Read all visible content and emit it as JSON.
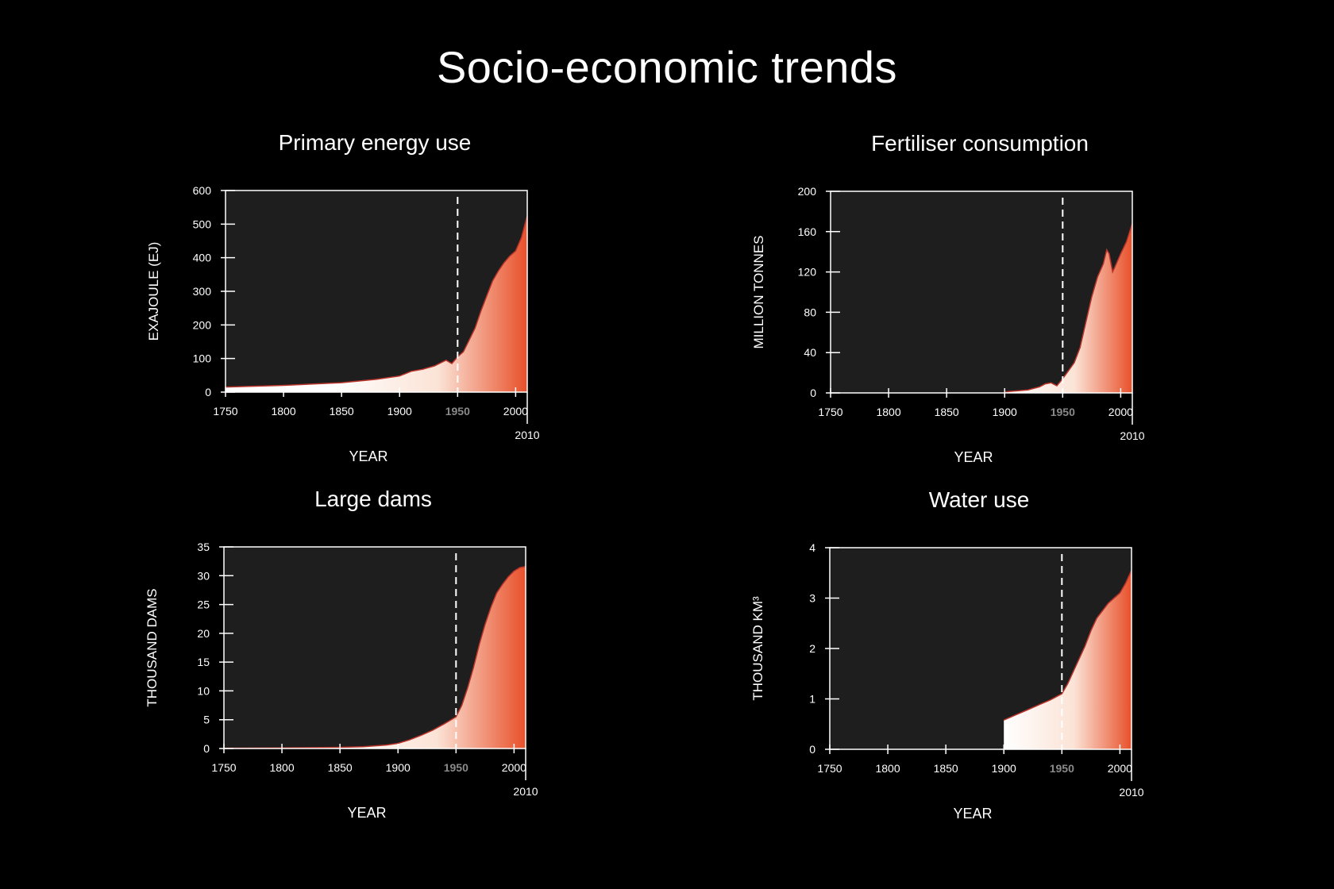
{
  "title": "Socio-economic trends",
  "colors": {
    "background": "#000000",
    "plot_bg": "#1e1e1e",
    "frame": "#ffffff",
    "gradient_start": "#ffffff",
    "gradient_end": "#e8502a",
    "edge": "#b8342a",
    "highlight_tick": "#8a8a8a"
  },
  "chart_data": [
    {
      "id": "energy",
      "type": "area",
      "title": "Primary energy use",
      "xlabel": "YEAR",
      "ylabel": "EXAJOULE (EJ)",
      "xlim": [
        1750,
        2010
      ],
      "ylim": [
        0,
        600
      ],
      "xticks": [
        1750,
        1800,
        1850,
        1900,
        1950,
        2000
      ],
      "xticks_highlight": [
        1950
      ],
      "xend_label": "2010",
      "yticks": [
        0,
        100,
        200,
        300,
        400,
        500,
        600
      ],
      "reference_line_x": 1950,
      "grid": false,
      "x": [
        1750,
        1800,
        1850,
        1880,
        1900,
        1910,
        1920,
        1930,
        1940,
        1945,
        1950,
        1955,
        1960,
        1965,
        1970,
        1975,
        1980,
        1985,
        1990,
        1995,
        2000,
        2005,
        2010
      ],
      "y": [
        15,
        20,
        28,
        38,
        48,
        62,
        68,
        78,
        95,
        85,
        105,
        120,
        155,
        190,
        240,
        285,
        330,
        360,
        385,
        405,
        420,
        460,
        525
      ]
    },
    {
      "id": "fertiliser",
      "type": "area",
      "title": "Fertiliser consumption",
      "xlabel": "YEAR",
      "ylabel": "MILLION TONNES",
      "xlim": [
        1750,
        2010
      ],
      "ylim": [
        0,
        200
      ],
      "xticks": [
        1750,
        1800,
        1850,
        1900,
        1950,
        2000
      ],
      "xticks_highlight": [
        1950
      ],
      "xend_label": "2010",
      "yticks": [
        0,
        40,
        80,
        120,
        160,
        200
      ],
      "reference_line_x": 1950,
      "grid": false,
      "x": [
        1900,
        1910,
        1920,
        1930,
        1935,
        1940,
        1945,
        1950,
        1955,
        1960,
        1965,
        1970,
        1975,
        1980,
        1985,
        1988,
        1990,
        1993,
        1995,
        2000,
        2005,
        2010
      ],
      "y": [
        1,
        2,
        3,
        6,
        9,
        10,
        7,
        14,
        22,
        30,
        45,
        70,
        95,
        115,
        128,
        142,
        138,
        120,
        125,
        138,
        150,
        168
      ]
    },
    {
      "id": "dams",
      "type": "area",
      "title": "Large dams",
      "xlabel": "YEAR",
      "ylabel": "THOUSAND DAMS",
      "xlim": [
        1750,
        2010
      ],
      "ylim": [
        0,
        35
      ],
      "xticks": [
        1750,
        1800,
        1850,
        1900,
        1950,
        2000
      ],
      "xticks_highlight": [
        1950
      ],
      "xend_label": "2010",
      "yticks": [
        0,
        5,
        10,
        15,
        20,
        25,
        30,
        35
      ],
      "reference_line_x": 1950,
      "grid": false,
      "x": [
        1750,
        1800,
        1850,
        1870,
        1890,
        1900,
        1910,
        1920,
        1930,
        1940,
        1950,
        1955,
        1960,
        1965,
        1970,
        1975,
        1980,
        1985,
        1990,
        1995,
        2000,
        2005,
        2010
      ],
      "y": [
        0.05,
        0.1,
        0.2,
        0.3,
        0.6,
        0.9,
        1.5,
        2.3,
        3.2,
        4.3,
        5.5,
        7.5,
        10.5,
        14,
        18,
        21.5,
        24.5,
        27,
        28.5,
        29.8,
        30.8,
        31.4,
        31.6
      ]
    },
    {
      "id": "water",
      "type": "area",
      "title": "Water use",
      "xlabel": "YEAR",
      "ylabel": "THOUSAND KM³",
      "xlim": [
        1750,
        2010
      ],
      "ylim": [
        0,
        4
      ],
      "xticks": [
        1750,
        1800,
        1850,
        1900,
        1950,
        2000
      ],
      "xticks_highlight": [
        1950
      ],
      "xend_label": "2010",
      "yticks": [
        0,
        1,
        2,
        3,
        4
      ],
      "reference_line_x": 1950,
      "grid": false,
      "x": [
        1900,
        1910,
        1920,
        1930,
        1940,
        1950,
        1955,
        1960,
        1965,
        1970,
        1975,
        1980,
        1985,
        1990,
        1995,
        2000,
        2005,
        2010
      ],
      "y": [
        0.58,
        0.68,
        0.78,
        0.88,
        0.98,
        1.1,
        1.3,
        1.55,
        1.8,
        2.05,
        2.35,
        2.6,
        2.75,
        2.9,
        3.0,
        3.1,
        3.3,
        3.55
      ]
    }
  ]
}
